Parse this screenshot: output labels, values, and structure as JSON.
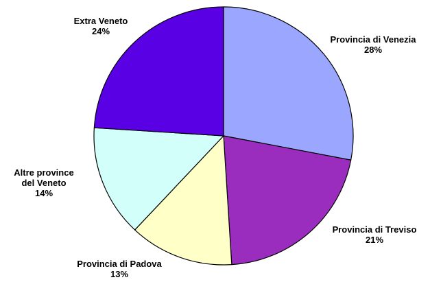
{
  "chart_data": {
    "type": "pie",
    "title": "",
    "slices": [
      {
        "label_lines": [
          "Provincia di Venezia"
        ],
        "value": 28,
        "value_label": "28%",
        "color": "#9BA7FF"
      },
      {
        "label_lines": [
          "Provincia di Treviso"
        ],
        "value": 21,
        "value_label": "21%",
        "color": "#9A2DBE"
      },
      {
        "label_lines": [
          "Provincia di Padova"
        ],
        "value": 13,
        "value_label": "13%",
        "color": "#FFFFC8"
      },
      {
        "label_lines": [
          "Altre province",
          "del Veneto"
        ],
        "value": 14,
        "value_label": "14%",
        "color": "#D2FFF9"
      },
      {
        "label_lines": [
          "Extra Veneto"
        ],
        "value": 24,
        "value_label": "24%",
        "color": "#5A00E4"
      }
    ],
    "start_angle_deg": 0,
    "direction": "clockwise",
    "legend": "none"
  }
}
